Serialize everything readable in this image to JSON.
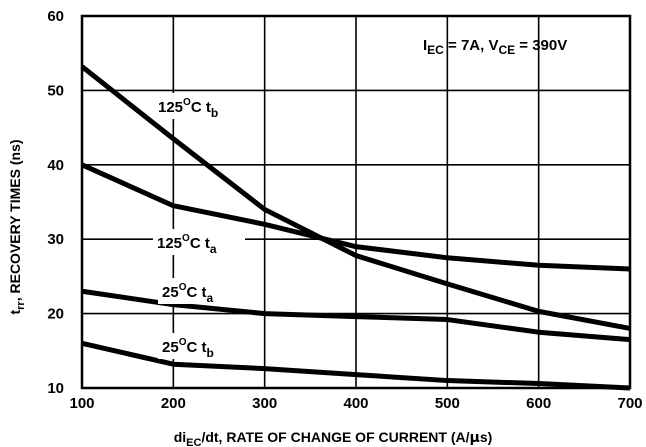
{
  "chart_data": {
    "type": "line",
    "xlabel": {
      "pre": "di",
      "sub": "EC",
      "post": "/dt, RATE OF CHANGE OF CURRENT (A/",
      "mu": "μ",
      "unit": "s)"
    },
    "ylabel": {
      "pre": "t",
      "sub": "rr",
      "post": ", RECOVERY TIMES (ns)"
    },
    "xlim": [
      100,
      700
    ],
    "ylim": [
      10,
      60
    ],
    "xticks": [
      "100",
      "200",
      "300",
      "400",
      "500",
      "600",
      "700"
    ],
    "yticks": [
      "10",
      "20",
      "30",
      "40",
      "50",
      "60"
    ],
    "grid": true,
    "conditions": {
      "i": "I",
      "i_sub": "EC",
      "i_val": " = 7A, V",
      "v_sub": "CE",
      "v_val": " = 390V"
    },
    "series": [
      {
        "name": "125°C tb",
        "x": [
          100,
          200,
          300,
          400,
          500,
          600,
          700
        ],
        "y": [
          53.2,
          43.5,
          34,
          27.8,
          24,
          20.3,
          18
        ]
      },
      {
        "name": "125°C ta",
        "x": [
          100,
          200,
          300,
          400,
          500,
          600,
          700
        ],
        "y": [
          40,
          34.5,
          32,
          29,
          27.5,
          26.5,
          26
        ]
      },
      {
        "name": "25°C ta",
        "x": [
          100,
          200,
          300,
          400,
          500,
          600,
          700
        ],
        "y": [
          23,
          21.2,
          20,
          19.6,
          19.2,
          17.5,
          16.5
        ]
      },
      {
        "name": "25°C tb",
        "x": [
          100,
          200,
          300,
          400,
          500,
          600,
          700
        ],
        "y": [
          16,
          13.2,
          12.6,
          11.8,
          11,
          10.6,
          10
        ]
      }
    ],
    "labels": [
      {
        "series": 0,
        "temp": "125",
        "deg": "O",
        "unit": "C t",
        "sub": "b"
      },
      {
        "series": 1,
        "temp": "125",
        "deg": "O",
        "unit": "C t",
        "sub": "a"
      },
      {
        "series": 2,
        "temp": "25",
        "deg": "O",
        "unit": "C t",
        "sub": "a"
      },
      {
        "series": 3,
        "temp": "25",
        "deg": "O",
        "unit": "C t",
        "sub": "b"
      }
    ]
  }
}
